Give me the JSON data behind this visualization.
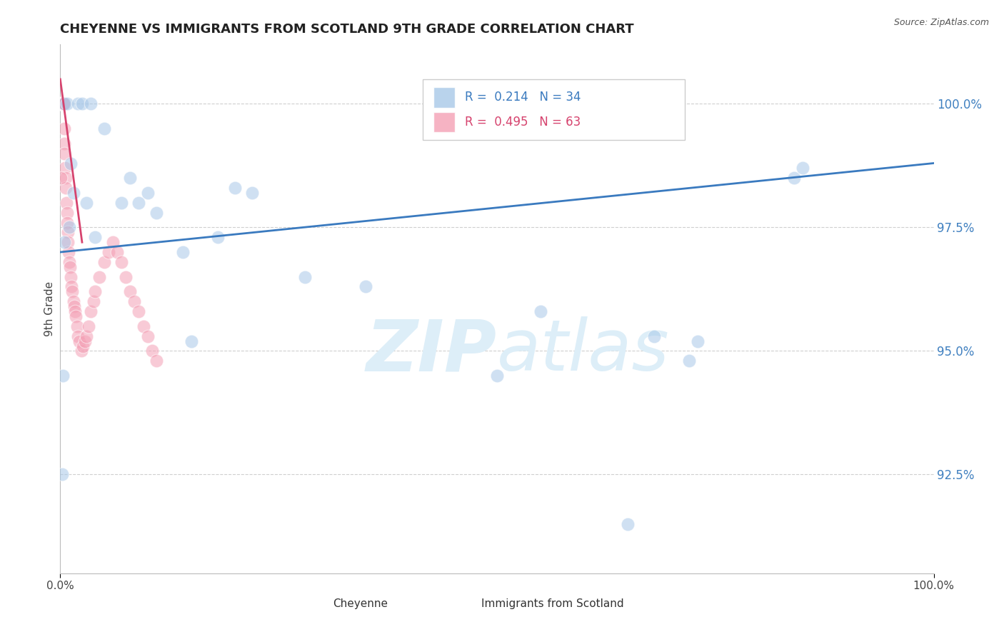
{
  "title": "CHEYENNE VS IMMIGRANTS FROM SCOTLAND 9TH GRADE CORRELATION CHART",
  "source": "Source: ZipAtlas.com",
  "ylabel": "9th Grade",
  "ytick_values": [
    92.5,
    95.0,
    97.5,
    100.0
  ],
  "legend1_label": "Cheyenne",
  "legend2_label": "Immigrants from Scotland",
  "legend1_R": "R = 0.214",
  "legend1_N": "N = 34",
  "legend2_R": "R = 0.495",
  "legend2_N": "N = 63",
  "blue_color": "#a8c8e8",
  "pink_color": "#f4a0b5",
  "trend_blue": "#3a7abf",
  "trend_pink": "#d6436e",
  "watermark_color": "#ddeef8",
  "xmin": 0.0,
  "xmax": 100.0,
  "ymin": 90.5,
  "ymax": 101.2,
  "blue_x": [
    0.3,
    0.5,
    0.8,
    1.2,
    1.5,
    2.0,
    2.5,
    3.5,
    5.0,
    7.0,
    8.0,
    10.0,
    11.0,
    14.0,
    15.0,
    18.0,
    20.0,
    22.0,
    28.0,
    35.0,
    50.0,
    55.0,
    65.0,
    68.0,
    72.0,
    73.0,
    84.0,
    85.0,
    1.0,
    3.0,
    4.0,
    9.0,
    0.5,
    0.2
  ],
  "blue_y": [
    94.5,
    100.0,
    100.0,
    98.8,
    98.2,
    100.0,
    100.0,
    100.0,
    99.5,
    98.0,
    98.5,
    98.2,
    97.8,
    97.0,
    95.2,
    97.3,
    98.3,
    98.2,
    96.5,
    96.3,
    94.5,
    95.8,
    91.5,
    95.3,
    94.8,
    95.2,
    98.5,
    98.7,
    97.5,
    98.0,
    97.3,
    98.0,
    97.2,
    92.5
  ],
  "pink_x": [
    0.05,
    0.08,
    0.1,
    0.12,
    0.15,
    0.18,
    0.2,
    0.22,
    0.25,
    0.28,
    0.3,
    0.32,
    0.35,
    0.38,
    0.4,
    0.42,
    0.45,
    0.48,
    0.5,
    0.55,
    0.6,
    0.65,
    0.7,
    0.75,
    0.8,
    0.85,
    0.9,
    0.95,
    1.0,
    1.1,
    1.2,
    1.3,
    1.4,
    1.5,
    1.6,
    1.7,
    1.8,
    1.9,
    2.0,
    2.2,
    2.4,
    2.6,
    2.8,
    3.0,
    3.2,
    3.5,
    3.8,
    4.0,
    4.5,
    5.0,
    5.5,
    6.0,
    6.5,
    7.0,
    7.5,
    8.0,
    8.5,
    9.0,
    9.5,
    10.0,
    10.5,
    11.0,
    0.05
  ],
  "pink_y": [
    100.0,
    100.0,
    100.0,
    100.0,
    100.0,
    100.0,
    100.0,
    100.0,
    100.0,
    100.0,
    100.0,
    100.0,
    100.0,
    100.0,
    100.0,
    100.0,
    99.5,
    99.2,
    99.0,
    98.7,
    98.5,
    98.3,
    98.0,
    97.8,
    97.6,
    97.4,
    97.2,
    97.0,
    96.8,
    96.7,
    96.5,
    96.3,
    96.2,
    96.0,
    95.9,
    95.8,
    95.7,
    95.5,
    95.3,
    95.2,
    95.0,
    95.1,
    95.2,
    95.3,
    95.5,
    95.8,
    96.0,
    96.2,
    96.5,
    96.8,
    97.0,
    97.2,
    97.0,
    96.8,
    96.5,
    96.2,
    96.0,
    95.8,
    95.5,
    95.3,
    95.0,
    94.8,
    98.5
  ],
  "blue_trend_x": [
    0.0,
    100.0
  ],
  "blue_trend_y": [
    97.0,
    98.8
  ],
  "pink_trend_x": [
    0.0,
    2.5
  ],
  "pink_trend_y": [
    100.5,
    97.2
  ]
}
